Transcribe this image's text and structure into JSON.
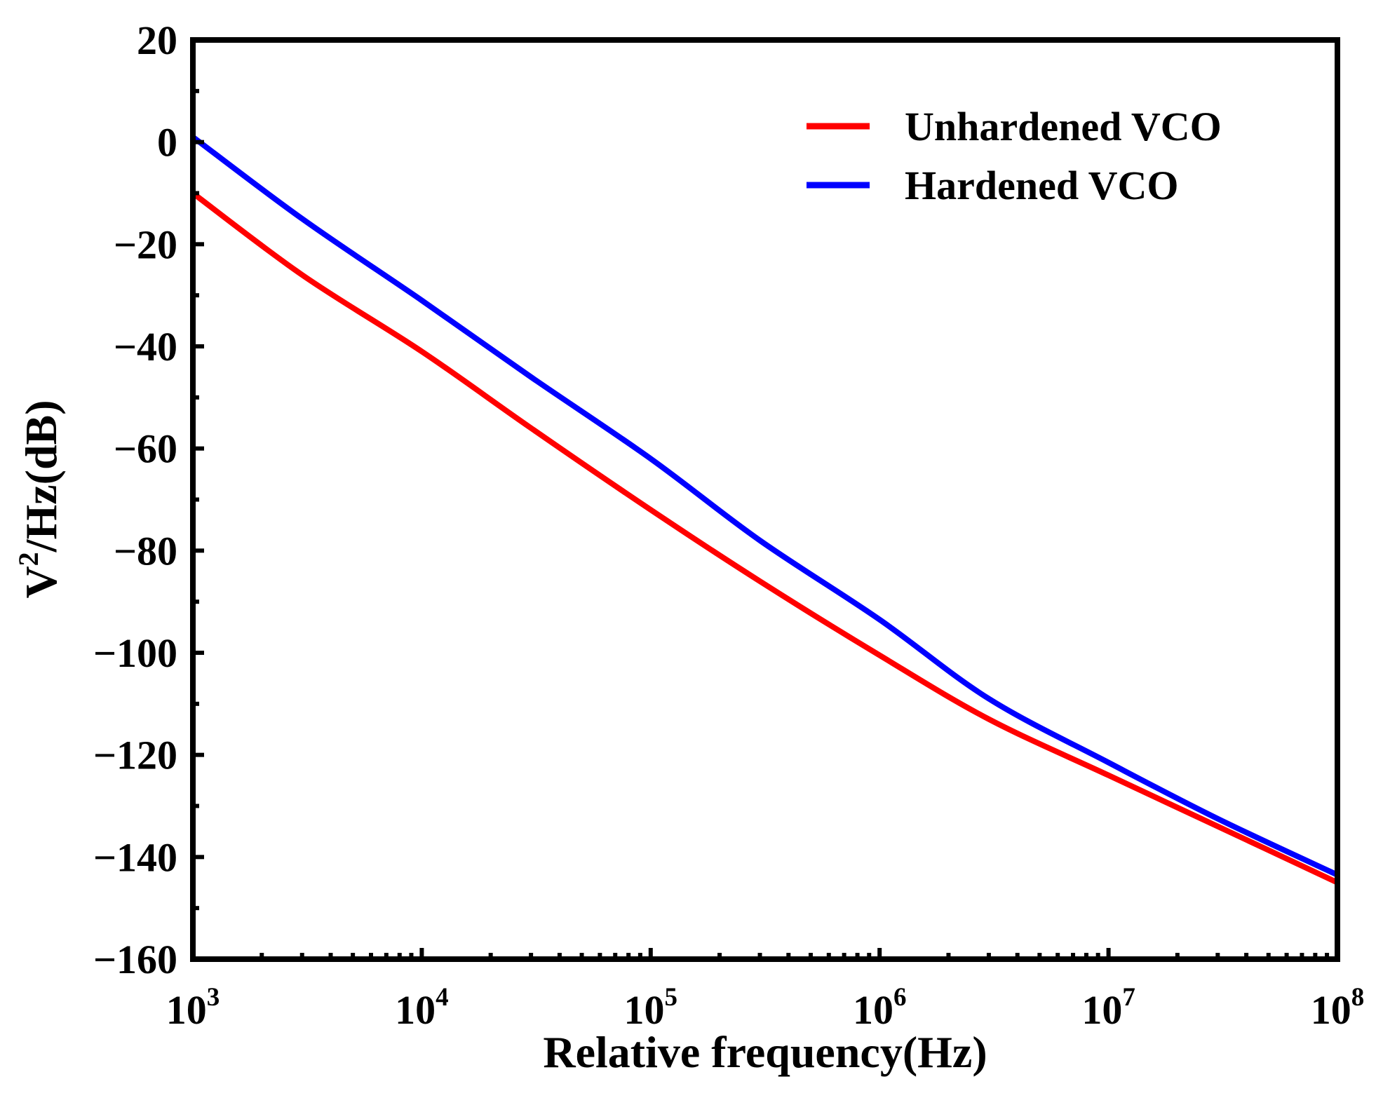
{
  "chart_data": {
    "type": "line",
    "title": "",
    "xlabel": "Relative frequency(Hz)",
    "ylabel": {
      "base": "V",
      "sup": "2",
      "rest": "/Hz(dB)"
    },
    "xscale": "log",
    "xlim": [
      1000,
      100000000
    ],
    "ylim": [
      -160,
      20
    ],
    "xticks": [
      {
        "value": 1000,
        "base": "10",
        "exp": "3"
      },
      {
        "value": 10000,
        "base": "10",
        "exp": "4"
      },
      {
        "value": 100000,
        "base": "10",
        "exp": "5"
      },
      {
        "value": 1000000,
        "base": "10",
        "exp": "6"
      },
      {
        "value": 10000000,
        "base": "10",
        "exp": "7"
      },
      {
        "value": 100000000,
        "base": "10",
        "exp": "8"
      }
    ],
    "yticks": [
      {
        "value": 20,
        "label": "20"
      },
      {
        "value": 0,
        "label": "0"
      },
      {
        "value": -20,
        "label": "−20"
      },
      {
        "value": -40,
        "label": "−40"
      },
      {
        "value": -60,
        "label": "−60"
      },
      {
        "value": -80,
        "label": "−80"
      },
      {
        "value": -100,
        "label": "−100"
      },
      {
        "value": -120,
        "label": "−120"
      },
      {
        "value": -140,
        "label": "−140"
      },
      {
        "value": -160,
        "label": "−160"
      }
    ],
    "legend_position": "top-right",
    "grid": false,
    "series": [
      {
        "name": "Unhardened VCO",
        "color": "#ff0000",
        "x": [
          1000,
          3000,
          10000,
          30000,
          100000,
          300000,
          1000000,
          3000000,
          10000000,
          30000000,
          100000000
        ],
        "y": [
          -10,
          -26,
          -41,
          -56,
          -72,
          -86,
          -100.5,
          -113,
          -124,
          -134,
          -145
        ]
      },
      {
        "name": "Hardened VCO",
        "color": "#0000ff",
        "x": [
          1000,
          3000,
          10000,
          30000,
          100000,
          300000,
          1000000,
          3000000,
          10000000,
          30000000,
          100000000
        ],
        "y": [
          1,
          -15,
          -31,
          -46,
          -62,
          -78,
          -93.5,
          -109,
          -121.5,
          -132.5,
          -143.5
        ]
      }
    ]
  }
}
